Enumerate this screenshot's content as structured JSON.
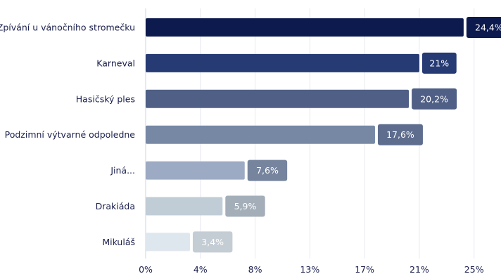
{
  "chart_data": {
    "type": "bar",
    "orientation": "horizontal",
    "categories": [
      "Zpívání u vánočního stromečku",
      "Karneval",
      "Hasičský ples",
      "Podzimní výtvarné odpoledne",
      "Jiná...",
      "Drakiáda",
      "Mikuláš"
    ],
    "values": [
      24.4,
      21,
      20.2,
      17.6,
      7.6,
      5.9,
      3.4
    ],
    "value_labels": [
      "24,4%",
      "21%",
      "20,2%",
      "17,6%",
      "7,6%",
      "5,9%",
      "3,4%"
    ],
    "xlim": [
      0,
      25
    ],
    "x_ticks": [
      0,
      4.2,
      8.4,
      12.6,
      16.8,
      21,
      25.2
    ],
    "x_tick_labels": [
      "0%",
      "4%",
      "8%",
      "13%",
      "17%",
      "21%",
      "25%"
    ],
    "grid": "vertical",
    "legend": "none",
    "title": "",
    "xlabel": "",
    "ylabel": "",
    "bar_colors": [
      "#0d1a4d",
      "#263a73",
      "#4f5f86",
      "#7688a4",
      "#9daac4",
      "#c0ccd6",
      "#dfe7ee"
    ],
    "label_box_colors": [
      "#0d1a4d",
      "#263a73",
      "#4f5f86",
      "#5e6d8e",
      "#76849e",
      "#a3aeb9",
      "#c5cdd4"
    ]
  }
}
